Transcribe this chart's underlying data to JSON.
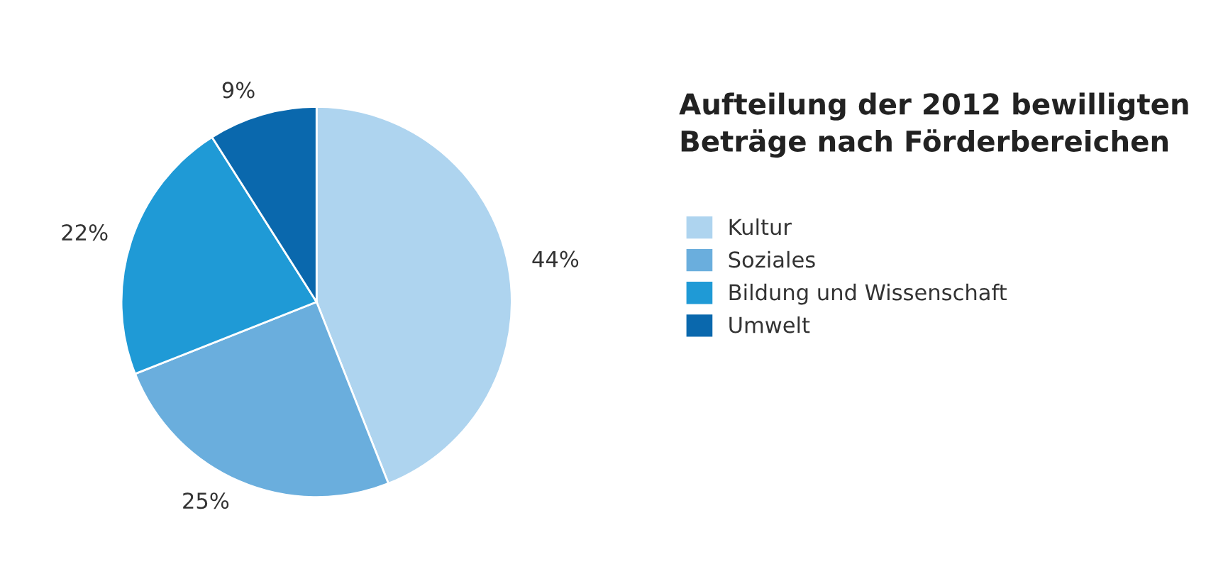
{
  "chart_data": {
    "type": "pie",
    "title": "Aufteilung der 2012 bewilligten\nBeträge nach Förderbereichen",
    "categories": [
      "Kultur",
      "Soziales",
      "Bildung und Wissenschaft",
      "Umwelt"
    ],
    "values": [
      44,
      25,
      22,
      9
    ],
    "value_labels": [
      "44%",
      "25%",
      "22%",
      "9%"
    ],
    "colors": [
      "#aed4ef",
      "#6aaedd",
      "#1f9ad6",
      "#0a68ad"
    ],
    "legend": "right"
  }
}
